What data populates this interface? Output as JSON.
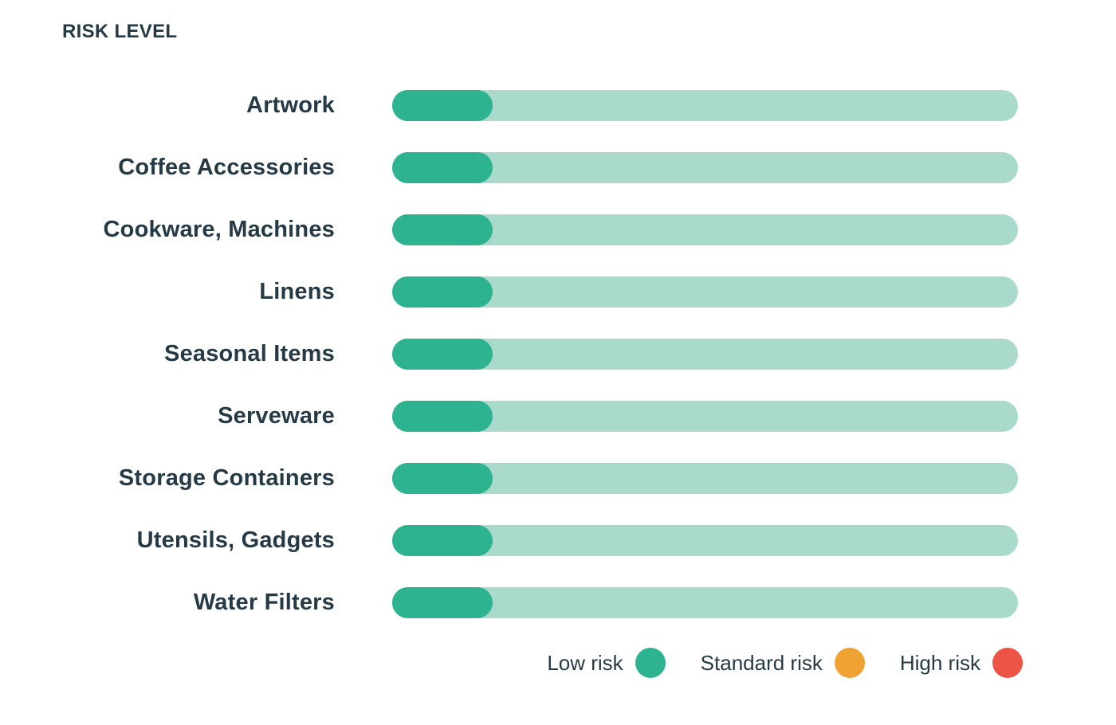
{
  "title": "RISK LEVEL",
  "chart_data": {
    "type": "bar",
    "orientation": "horizontal",
    "title": "RISK LEVEL",
    "categories": [
      "Artwork",
      "Coffee Accessories",
      "Cookware, Machines",
      "Linens",
      "Seasonal Items",
      "Serveware",
      "Storage Containers",
      "Utensils, Gadgets",
      "Water Filters"
    ],
    "series": [
      {
        "name": "Risk level fill (% of track)",
        "values": [
          16,
          16,
          16,
          16,
          16,
          16,
          16,
          16,
          16
        ]
      }
    ],
    "risk_levels": [
      "low",
      "low",
      "low",
      "low",
      "low",
      "low",
      "low",
      "low",
      "low"
    ],
    "xlim": [
      0,
      100
    ],
    "grid": false,
    "legend_position": "bottom-right",
    "colors": {
      "low_risk": "#2eb391",
      "standard_risk": "#f0a233",
      "high_risk": "#ee5445",
      "track": "#a9dacb",
      "text": "#263a46"
    }
  },
  "legend": {
    "items": [
      {
        "label": "Low risk",
        "color": "#2eb391"
      },
      {
        "label": "Standard risk",
        "color": "#f0a233"
      },
      {
        "label": "High risk",
        "color": "#ee5445"
      }
    ]
  }
}
